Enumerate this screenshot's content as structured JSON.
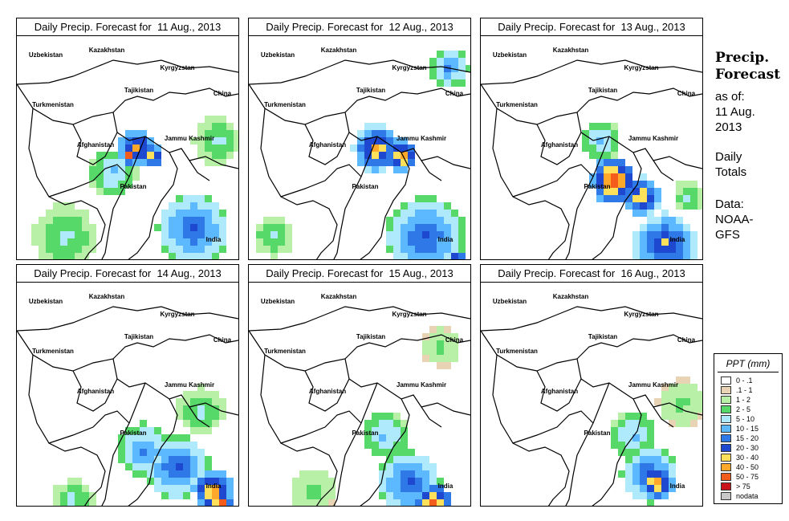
{
  "panels": [
    {
      "title": "Daily Precip. Forecast for  11 Aug., 2013",
      "seed": 11
    },
    {
      "title": "Daily Precip. Forecast for  12 Aug., 2013",
      "seed": 12
    },
    {
      "title": "Daily Precip. Forecast for  13 Aug., 2013",
      "seed": 13
    },
    {
      "title": "Daily Precip. Forecast for  14 Aug., 2013",
      "seed": 14
    },
    {
      "title": "Daily Precip. Forecast for  15 Aug., 2013",
      "seed": 15
    },
    {
      "title": "Daily Precip. Forecast for  16 Aug., 2013",
      "seed": 16
    }
  ],
  "map_labels": [
    "Kazakhstan",
    "Uzbekistan",
    "Kyrgyzstan",
    "Tajikistan",
    "China",
    "Turkmenistan",
    "Afghanistan",
    "Jammu Kashmir",
    "Pakistan",
    "India"
  ],
  "side": {
    "title_line1": "Precip.",
    "title_line2": "Forecast",
    "asof_line1": "as of:",
    "asof_line2": "11 Aug.",
    "asof_line3": "2013",
    "totals_line1": "Daily",
    "totals_line2": "Totals",
    "source_line1": "Data:",
    "source_line2": "NOAA-",
    "source_line3": "GFS"
  },
  "legend": {
    "title": "PPT (mm)",
    "items": [
      {
        "label": "0 - .1",
        "color": "#ffffff"
      },
      {
        "label": ".1 - 1",
        "color": "#e8d3b5"
      },
      {
        "label": "1 - 2",
        "color": "#b8f0a8"
      },
      {
        "label": "2 - 5",
        "color": "#57d96a"
      },
      {
        "label": "5 - 10",
        "color": "#aeeafc"
      },
      {
        "label": "10 - 15",
        "color": "#5cb8ff"
      },
      {
        "label": "15 - 20",
        "color": "#2f78e8"
      },
      {
        "label": "20 - 30",
        "color": "#1f48d0"
      },
      {
        "label": "30 - 40",
        "color": "#ffe05a"
      },
      {
        "label": "40 - 50",
        "color": "#ffa82a"
      },
      {
        "label": "50 - 75",
        "color": "#f45c1c"
      },
      {
        "label": "> 75",
        "color": "#c8141a"
      },
      {
        "label": "nodata",
        "color": "#c8c8c8"
      }
    ]
  }
}
